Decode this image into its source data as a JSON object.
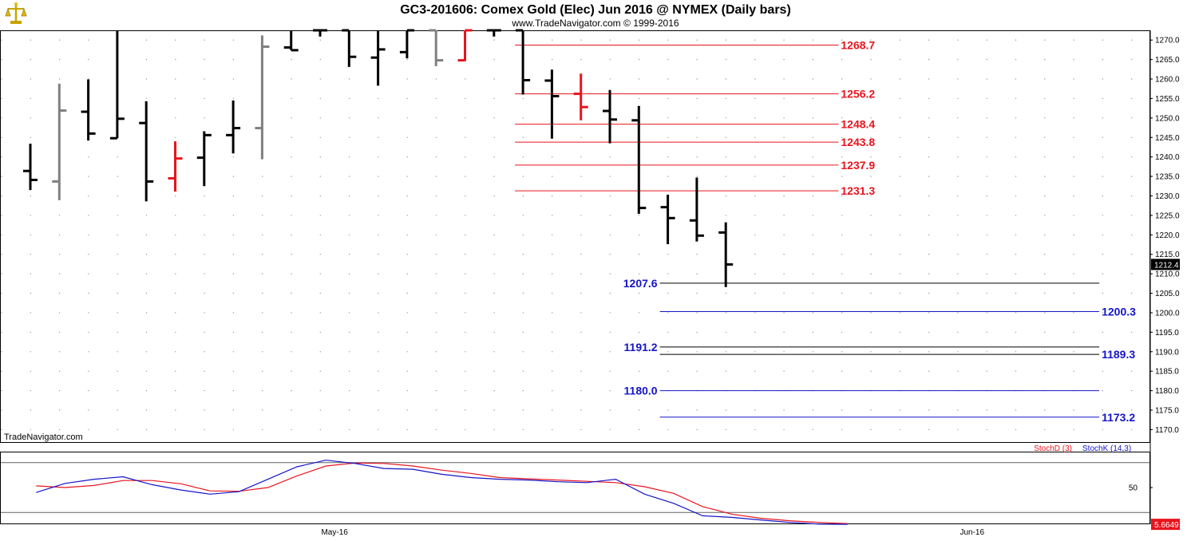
{
  "header": {
    "title": "GC3-201606:  Comex Gold (Elec) Jun 2016 @ NYMEX  (Daily bars)",
    "copyright": "www.TradeNavigator.com © 1999-2016"
  },
  "watermark": "TradeNavigator.com",
  "logo_icon": "scales-icon",
  "colors": {
    "bar_black": "#000000",
    "bar_gray": "#808080",
    "bar_red": "#e8141e",
    "resistance": "#e8141e",
    "support": "#1414c8",
    "stoch_d": "#e8141e",
    "stoch_k": "#1414c8",
    "last_price_bg": "#000000",
    "stoch_tag_bg": "#e8141e"
  },
  "last_price_tag": "1212.4",
  "stoch_value_tag": "5.6649",
  "chart_data": [
    {
      "type": "ohlc",
      "title": "GC3-201606:  Comex Gold (Elec) Jun 2016 @ NYMEX  (Daily bars)",
      "ylim": [
        1166.6,
        1272.5
      ],
      "yticks": [
        1270.0,
        1265.0,
        1260.0,
        1255.0,
        1250.0,
        1245.0,
        1240.0,
        1235.0,
        1230.0,
        1225.0,
        1220.0,
        1215.0,
        1210.0,
        1205.0,
        1200.0,
        1195.0,
        1190.0,
        1185.0,
        1180.0,
        1175.0,
        1170.0
      ],
      "ytick_labels": [
        "1270.0",
        "1265.0",
        "1260.0",
        "1255.0",
        "1250.0",
        "1245.0",
        "1240.0",
        "1235.0",
        "1230.0",
        "1225.0",
        "1220.0",
        "1215.0",
        "1210.0",
        "1205.0",
        "1200.0",
        "1195.0",
        "1190.0",
        "1185.0",
        "1180.0",
        "1175.0",
        "1170.0"
      ],
      "x_labels": [
        {
          "bar": 10.5,
          "label": "May-16"
        },
        {
          "bar": 32.5,
          "label": "Jun-16"
        }
      ],
      "grid": true,
      "bars": [
        {
          "o": 1236.4,
          "h": 1243.4,
          "l": 1231.5,
          "c": 1234.1,
          "color": "black"
        },
        {
          "o": 1233.7,
          "h": 1258.8,
          "l": 1228.9,
          "c": 1251.9,
          "color": "gray"
        },
        {
          "o": 1251.6,
          "h": 1259.9,
          "l": 1244.2,
          "c": 1246.0,
          "color": "black"
        },
        {
          "o": 1244.8,
          "h": 1272.5,
          "l": 1244.8,
          "c": 1249.8,
          "color": "black"
        },
        {
          "o": 1248.7,
          "h": 1254.3,
          "l": 1228.6,
          "c": 1233.7,
          "color": "black"
        },
        {
          "o": 1234.5,
          "h": 1244.0,
          "l": 1231.1,
          "c": 1239.6,
          "color": "red"
        },
        {
          "o": 1239.8,
          "h": 1246.6,
          "l": 1232.5,
          "c": 1245.6,
          "color": "black"
        },
        {
          "o": 1245.6,
          "h": 1254.5,
          "l": 1240.9,
          "c": 1247.4,
          "color": "black"
        },
        {
          "o": 1247.4,
          "h": 1271.2,
          "l": 1239.4,
          "c": 1268.3,
          "color": "gray"
        },
        {
          "o": 1268.1,
          "h": 1272.5,
          "l": 1267.4,
          "c": 1267.4,
          "color": "black"
        },
        {
          "o": 1272.5,
          "h": 1272.5,
          "l": 1270.9,
          "c": 1272.5,
          "color": "black"
        },
        {
          "o": 1272.5,
          "h": 1272.5,
          "l": 1263.1,
          "c": 1265.7,
          "color": "black"
        },
        {
          "o": 1265.5,
          "h": 1272.5,
          "l": 1258.3,
          "c": 1267.6,
          "color": "black"
        },
        {
          "o": 1266.9,
          "h": 1272.5,
          "l": 1265.3,
          "c": 1272.5,
          "color": "black"
        },
        {
          "o": 1272.5,
          "h": 1272.5,
          "l": 1263.3,
          "c": 1264.8,
          "color": "gray"
        },
        {
          "o": 1264.8,
          "h": 1272.5,
          "l": 1264.6,
          "c": 1272.5,
          "color": "red"
        },
        {
          "o": 1272.5,
          "h": 1272.5,
          "l": 1270.9,
          "c": 1272.5,
          "color": "black"
        },
        {
          "o": 1272.5,
          "h": 1272.5,
          "l": 1256.0,
          "c": 1259.7,
          "color": "black"
        },
        {
          "o": 1259.6,
          "h": 1262.4,
          "l": 1244.7,
          "c": 1255.6,
          "color": "black"
        },
        {
          "o": 1256.2,
          "h": 1261.4,
          "l": 1249.4,
          "c": 1252.8,
          "color": "red"
        },
        {
          "o": 1251.8,
          "h": 1257.2,
          "l": 1243.5,
          "c": 1249.6,
          "color": "black"
        },
        {
          "o": 1249.4,
          "h": 1253.1,
          "l": 1225.4,
          "c": 1226.9,
          "color": "black"
        },
        {
          "o": 1227.1,
          "h": 1230.3,
          "l": 1217.6,
          "c": 1224.3,
          "color": "black"
        },
        {
          "o": 1223.7,
          "h": 1234.7,
          "l": 1218.3,
          "c": 1219.8,
          "color": "black"
        },
        {
          "o": 1220.6,
          "h": 1223.2,
          "l": 1206.6,
          "c": 1212.4,
          "color": "black"
        }
      ],
      "levels": [
        {
          "value": 1268.7,
          "label": "1268.7",
          "color": "red",
          "x_start_bar": 17,
          "x_end_bar": 28,
          "label_side": "right"
        },
        {
          "value": 1256.2,
          "label": "1256.2",
          "color": "red",
          "x_start_bar": 17,
          "x_end_bar": 28,
          "label_side": "right"
        },
        {
          "value": 1248.4,
          "label": "1248.4",
          "color": "red",
          "x_start_bar": 17,
          "x_end_bar": 28,
          "label_side": "right"
        },
        {
          "value": 1243.8,
          "label": "1243.8",
          "color": "red",
          "x_start_bar": 17,
          "x_end_bar": 28,
          "label_side": "right"
        },
        {
          "value": 1237.9,
          "label": "1237.9",
          "color": "red",
          "x_start_bar": 17,
          "x_end_bar": 28,
          "label_side": "right"
        },
        {
          "value": 1231.3,
          "label": "1231.3",
          "color": "red",
          "x_start_bar": 17,
          "x_end_bar": 28,
          "label_side": "right"
        },
        {
          "value": 1207.6,
          "label": "1207.6",
          "color": "black",
          "label_color": "blue",
          "x_start_bar": 22,
          "x_end_bar": 37,
          "label_side": "left"
        },
        {
          "value": 1200.3,
          "label": "1200.3",
          "color": "blue",
          "x_start_bar": 22,
          "x_end_bar": 37,
          "label_side": "right"
        },
        {
          "value": 1191.2,
          "label": "1191.2",
          "color": "black",
          "label_color": "blue",
          "x_start_bar": 22,
          "x_end_bar": 37,
          "label_side": "left"
        },
        {
          "value": 1189.3,
          "label": "1189.3",
          "color": "black",
          "label_color": "blue",
          "x_start_bar": 22,
          "x_end_bar": 37,
          "label_side": "right"
        },
        {
          "value": 1180.0,
          "label": "1180.0",
          "color": "blue",
          "x_start_bar": 22,
          "x_end_bar": 37,
          "label_side": "left"
        },
        {
          "value": 1173.2,
          "label": "1173.2",
          "color": "blue",
          "x_start_bar": 22,
          "x_end_bar": 37,
          "label_side": "right"
        }
      ]
    },
    {
      "type": "line",
      "ylim": [
        0,
        100
      ],
      "yticks": [
        50
      ],
      "ytick_labels": [
        "50"
      ],
      "reference_lines": [
        80,
        20
      ],
      "legend": [
        "StochD (3)",
        "StochK (14,3)"
      ],
      "series": [
        {
          "name": "StochD (3)",
          "color": "red",
          "values": [
            52.0,
            50.0,
            52.5,
            58.5,
            58.5,
            54.5,
            46.0,
            45.5,
            50.0,
            64.0,
            76.0,
            79.5,
            79.0,
            76.0,
            71.0,
            67.0,
            62.0,
            60.5,
            59.0,
            57.5,
            56.0,
            51.0,
            43.0,
            27.0,
            18.0,
            13.0,
            10.0,
            8.0,
            6.5
          ]
        },
        {
          "name": "StochK (14,3)",
          "color": "blue",
          "values": [
            44.0,
            55.0,
            60.0,
            63.0,
            53.5,
            47.0,
            42.0,
            45.0,
            60.0,
            75.0,
            83.0,
            79.0,
            73.0,
            72.0,
            66.0,
            62.0,
            60.0,
            59.0,
            57.0,
            56.0,
            60.0,
            42.0,
            31.0,
            16.0,
            14.0,
            11.0,
            8.0,
            6.0,
            5.66
          ]
        }
      ]
    }
  ]
}
